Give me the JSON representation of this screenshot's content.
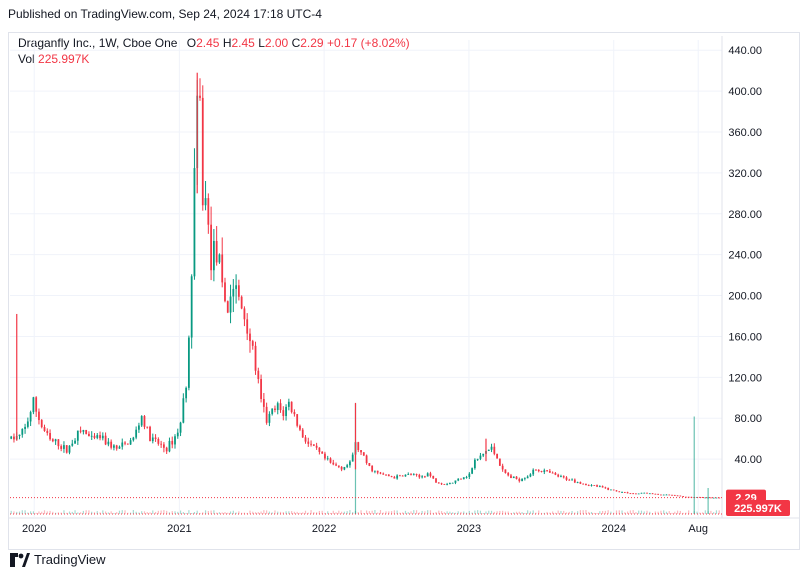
{
  "published": "Published on TradingView.com, Sep 24, 2024 17:18 UTC-4",
  "legend": {
    "symbol": "Draganfly Inc., 1W, Cboe One",
    "o_label": "O",
    "o_value": "2.45",
    "h_label": "H",
    "h_value": "2.45",
    "l_label": "L",
    "l_value": "2.00",
    "c_label": "C",
    "c_value": "2.29",
    "change": "+0.17 (+8.02%)",
    "vol_label": "Vol",
    "vol_value": "225.997K"
  },
  "footer": {
    "brand": "TradingView"
  },
  "colors": {
    "up": "#089981",
    "down": "#f23645",
    "grid": "#f0f3fa",
    "axis_text": "#131722"
  },
  "chart_data": {
    "type": "candlestick",
    "interval": "1W",
    "y_axis": {
      "ticks": [
        40,
        80,
        120,
        160,
        200,
        240,
        280,
        320,
        360,
        400,
        440
      ],
      "tick_labels": [
        "40.00",
        "80.00",
        "120.00",
        "160.00",
        "200.00",
        "240.00",
        "280.00",
        "320.00",
        "360.00",
        "400.00",
        "440.00"
      ],
      "range": [
        0,
        450
      ],
      "position": "right"
    },
    "x_axis": {
      "tick_labels": [
        "2020",
        "2021",
        "2022",
        "2023",
        "2024",
        "Aug"
      ],
      "range": [
        "2019-11",
        "2024-09"
      ]
    },
    "last_price": {
      "value": 2.29,
      "label": "2.29"
    },
    "last_volume": {
      "label": "225.997K"
    },
    "grid": true,
    "price_path": [
      [
        "2019-11-04",
        60
      ],
      [
        "2019-11-25",
        62
      ],
      [
        "2019-12-09",
        70
      ],
      [
        "2019-12-30",
        95
      ],
      [
        "2020-01-20",
        72
      ],
      [
        "2020-02-10",
        58
      ],
      [
        "2020-03-02",
        55
      ],
      [
        "2020-03-23",
        48
      ],
      [
        "2020-04-13",
        62
      ],
      [
        "2020-05-04",
        68
      ],
      [
        "2020-05-25",
        58
      ],
      [
        "2020-06-15",
        62
      ],
      [
        "2020-07-06",
        55
      ],
      [
        "2020-07-27",
        50
      ],
      [
        "2020-08-17",
        54
      ],
      [
        "2020-09-07",
        60
      ],
      [
        "2020-09-28",
        82
      ],
      [
        "2020-10-19",
        60
      ],
      [
        "2020-11-09",
        55
      ],
      [
        "2020-11-30",
        50
      ],
      [
        "2020-12-21",
        62
      ],
      [
        "2021-01-04",
        75
      ],
      [
        "2021-01-18",
        120
      ],
      [
        "2021-01-25",
        150
      ],
      [
        "2021-02-01",
        230
      ],
      [
        "2021-02-08",
        320
      ],
      [
        "2021-02-15",
        370
      ],
      [
        "2021-02-22",
        380
      ],
      [
        "2021-03-01",
        300
      ],
      [
        "2021-03-08",
        290
      ],
      [
        "2021-03-22",
        240
      ],
      [
        "2021-04-05",
        245
      ],
      [
        "2021-04-19",
        200
      ],
      [
        "2021-05-03",
        190
      ],
      [
        "2021-05-17",
        210
      ],
      [
        "2021-05-31",
        195
      ],
      [
        "2021-06-14",
        180
      ],
      [
        "2021-06-28",
        160
      ],
      [
        "2021-07-12",
        130
      ],
      [
        "2021-07-26",
        95
      ],
      [
        "2021-08-09",
        78
      ],
      [
        "2021-08-23",
        85
      ],
      [
        "2021-09-06",
        90
      ],
      [
        "2021-09-20",
        85
      ],
      [
        "2021-10-04",
        95
      ],
      [
        "2021-10-18",
        82
      ],
      [
        "2021-11-01",
        68
      ],
      [
        "2021-11-22",
        55
      ],
      [
        "2021-12-13",
        48
      ],
      [
        "2022-01-03",
        40
      ],
      [
        "2022-01-24",
        34
      ],
      [
        "2022-02-14",
        32
      ],
      [
        "2022-03-07",
        35
      ],
      [
        "2022-03-21",
        55
      ],
      [
        "2022-04-04",
        45
      ],
      [
        "2022-04-25",
        32
      ],
      [
        "2022-05-16",
        26
      ],
      [
        "2022-06-06",
        24
      ],
      [
        "2022-06-27",
        22
      ],
      [
        "2022-07-18",
        24
      ],
      [
        "2022-08-08",
        25
      ],
      [
        "2022-08-29",
        22
      ],
      [
        "2022-09-19",
        26
      ],
      [
        "2022-10-10",
        18
      ],
      [
        "2022-10-31",
        16
      ],
      [
        "2022-11-21",
        17
      ],
      [
        "2022-12-12",
        22
      ],
      [
        "2023-01-02",
        25
      ],
      [
        "2023-01-16",
        38
      ],
      [
        "2023-01-30",
        42
      ],
      [
        "2023-02-13",
        48
      ],
      [
        "2023-02-27",
        50
      ],
      [
        "2023-03-13",
        42
      ],
      [
        "2023-03-27",
        28
      ],
      [
        "2023-04-17",
        22
      ],
      [
        "2023-05-08",
        20
      ],
      [
        "2023-05-29",
        24
      ],
      [
        "2023-06-19",
        30
      ],
      [
        "2023-07-10",
        28
      ],
      [
        "2023-07-31",
        25
      ],
      [
        "2023-08-21",
        22
      ],
      [
        "2023-09-11",
        20
      ],
      [
        "2023-10-02",
        18
      ],
      [
        "2023-10-23",
        15
      ],
      [
        "2023-11-13",
        14
      ],
      [
        "2023-12-04",
        12
      ],
      [
        "2023-12-25",
        10
      ],
      [
        "2024-01-15",
        8
      ],
      [
        "2024-02-05",
        7
      ],
      [
        "2024-02-26",
        6
      ],
      [
        "2024-03-18",
        7
      ],
      [
        "2024-04-08",
        6
      ],
      [
        "2024-04-29",
        5
      ],
      [
        "2024-05-20",
        5
      ],
      [
        "2024-06-10",
        4
      ],
      [
        "2024-07-01",
        3
      ],
      [
        "2024-07-22",
        3
      ],
      [
        "2024-08-12",
        2.5
      ],
      [
        "2024-09-02",
        2.3
      ],
      [
        "2024-09-23",
        2.29
      ]
    ],
    "wick_spikes": [
      {
        "date": "2019-11-18",
        "high": 182,
        "low": 58
      },
      {
        "date": "2021-02-15",
        "high": 418,
        "low": 300
      },
      {
        "date": "2022-03-21",
        "high": 95,
        "low": 30
      },
      {
        "date": "2023-02-13",
        "high": 60,
        "low": 38
      }
    ],
    "volume_spikes": [
      {
        "date": "2022-03-21",
        "level": 0.85
      },
      {
        "date": "2024-07-22",
        "level": 0.75
      },
      {
        "date": "2024-08-26",
        "level": 0.2
      }
    ]
  }
}
